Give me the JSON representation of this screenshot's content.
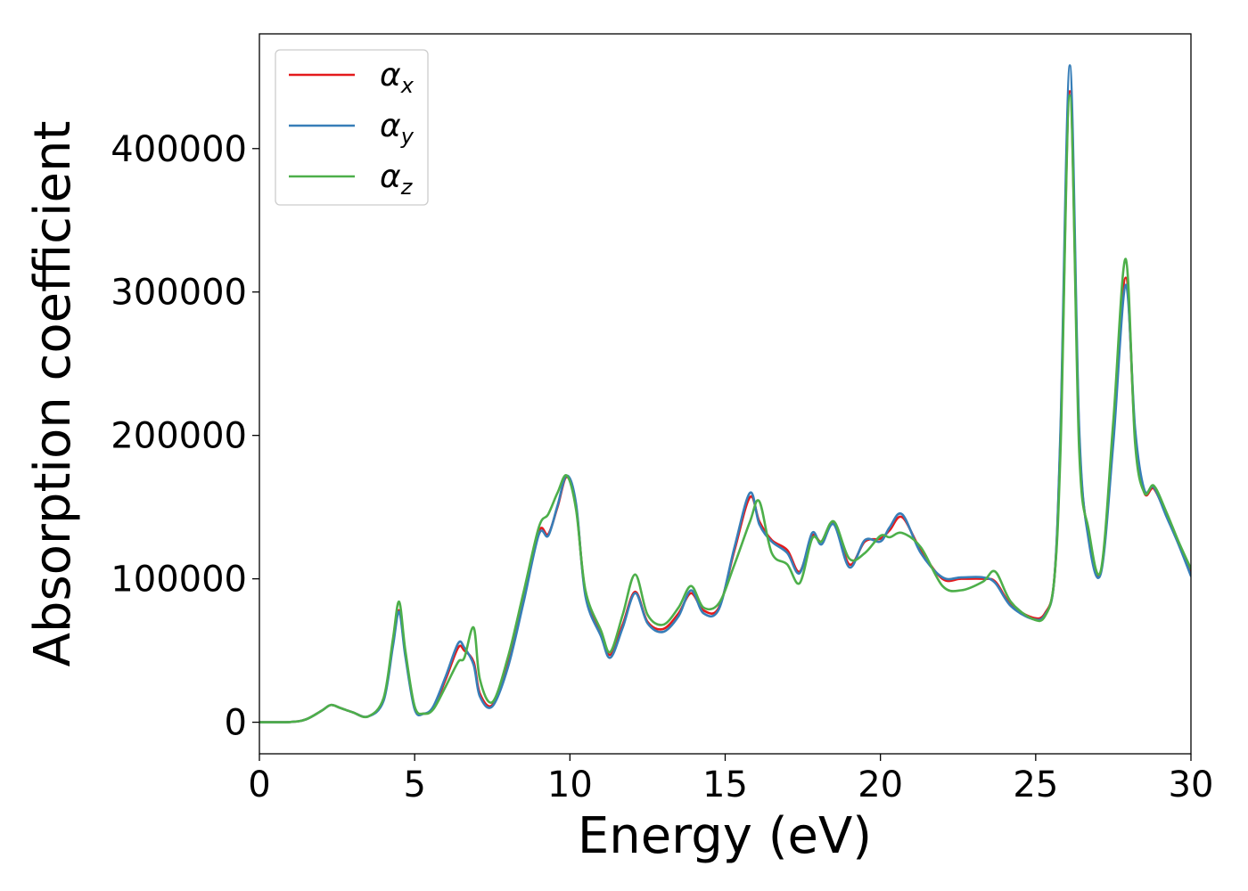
{
  "chart_data": {
    "type": "line",
    "xlabel": "Energy (eV)",
    "ylabel": "Absorption coefficient",
    "xlim": [
      0,
      30
    ],
    "ylim": [
      -22000,
      480000
    ],
    "xticks": [
      0,
      5,
      10,
      15,
      20,
      25,
      30
    ],
    "xtick_labels": [
      "0",
      "5",
      "10",
      "15",
      "20",
      "25",
      "30"
    ],
    "yticks": [
      0,
      100000,
      200000,
      300000,
      400000
    ],
    "ytick_labels": [
      "0",
      "100000",
      "200000",
      "300000",
      "400000"
    ],
    "grid": false,
    "legend_position": "top-left",
    "x": [
      0,
      1,
      1.5,
      2,
      2.3,
      2.6,
      3,
      3.5,
      4,
      4.3,
      4.5,
      4.7,
      5,
      5.3,
      5.6,
      6,
      6.4,
      6.6,
      6.9,
      7.1,
      7.5,
      8,
      8.5,
      9,
      9.3,
      9.6,
      9.9,
      10.2,
      10.5,
      11,
      11.3,
      11.7,
      12.1,
      12.5,
      13,
      13.5,
      13.9,
      14.3,
      14.8,
      15.3,
      15.8,
      16.1,
      16.5,
      17,
      17.4,
      17.8,
      18.1,
      18.5,
      19,
      19.5,
      20,
      20.3,
      20.7,
      21.3,
      22,
      22.6,
      23.3,
      23.7,
      24.2,
      24.9,
      25.3,
      25.6,
      25.8,
      26.1,
      26.4,
      26.7,
      27.1,
      27.5,
      27.9,
      28.2,
      28.5,
      28.8,
      29.2,
      29.6,
      30
    ],
    "series": [
      {
        "name": "αx",
        "symbol": "α",
        "subscript": "x",
        "color": "#e41a1c",
        "values": [
          0,
          200,
          2000,
          8000,
          12000,
          10000,
          7000,
          4000,
          16000,
          55000,
          78000,
          48000,
          10000,
          6000,
          10000,
          30000,
          52000,
          50000,
          42000,
          20000,
          12000,
          40000,
          85000,
          133000,
          131000,
          150000,
          171000,
          150000,
          90000,
          62000,
          47000,
          68000,
          91000,
          70000,
          65000,
          76000,
          90000,
          78000,
          80000,
          120000,
          157000,
          140000,
          127000,
          120000,
          105000,
          130000,
          126000,
          139000,
          110000,
          126000,
          128000,
          134000,
          143000,
          120000,
          100000,
          100000,
          100000,
          98000,
          82000,
          73000,
          76000,
          100000,
          200000,
          440000,
          200000,
          130000,
          105000,
          200000,
          310000,
          200000,
          160000,
          163000,
          145000,
          125000,
          103000
        ]
      },
      {
        "name": "αy",
        "symbol": "α",
        "subscript": "y",
        "color": "#377eb8",
        "values": [
          0,
          200,
          2000,
          8000,
          12000,
          10000,
          7000,
          4000,
          15000,
          53000,
          77000,
          46000,
          9000,
          6000,
          11000,
          32000,
          55000,
          52000,
          40000,
          18000,
          11000,
          38000,
          83000,
          131000,
          130000,
          151000,
          172000,
          152000,
          88000,
          60000,
          45000,
          66000,
          90000,
          69000,
          63000,
          74000,
          92000,
          76000,
          79000,
          122000,
          160000,
          138000,
          126000,
          118000,
          104000,
          132000,
          124000,
          138000,
          108000,
          127000,
          126000,
          136000,
          145000,
          118000,
          101000,
          101000,
          101000,
          97000,
          81000,
          72000,
          75000,
          100000,
          205000,
          458000,
          205000,
          128000,
          104000,
          195000,
          305000,
          205000,
          162000,
          164000,
          144000,
          124000,
          102000
        ]
      },
      {
        "name": "αz",
        "symbol": "α",
        "subscript": "z",
        "color": "#4daf4a",
        "values": [
          0,
          200,
          2000,
          8000,
          12000,
          10000,
          7000,
          4000,
          17000,
          58000,
          84000,
          50000,
          11000,
          6000,
          9000,
          25000,
          42000,
          45000,
          66000,
          30000,
          14000,
          45000,
          90000,
          136000,
          145000,
          160000,
          172000,
          148000,
          92000,
          64000,
          49000,
          75000,
          103000,
          75000,
          68000,
          80000,
          95000,
          80000,
          83000,
          110000,
          140000,
          154000,
          118000,
          110000,
          97000,
          128000,
          126000,
          140000,
          114000,
          118000,
          130000,
          129000,
          132000,
          122000,
          95000,
          92000,
          98000,
          105000,
          84000,
          72000,
          74000,
          100000,
          190000,
          437000,
          190000,
          135000,
          106000,
          210000,
          323000,
          195000,
          160000,
          165000,
          147000,
          126000,
          107000
        ]
      }
    ]
  }
}
